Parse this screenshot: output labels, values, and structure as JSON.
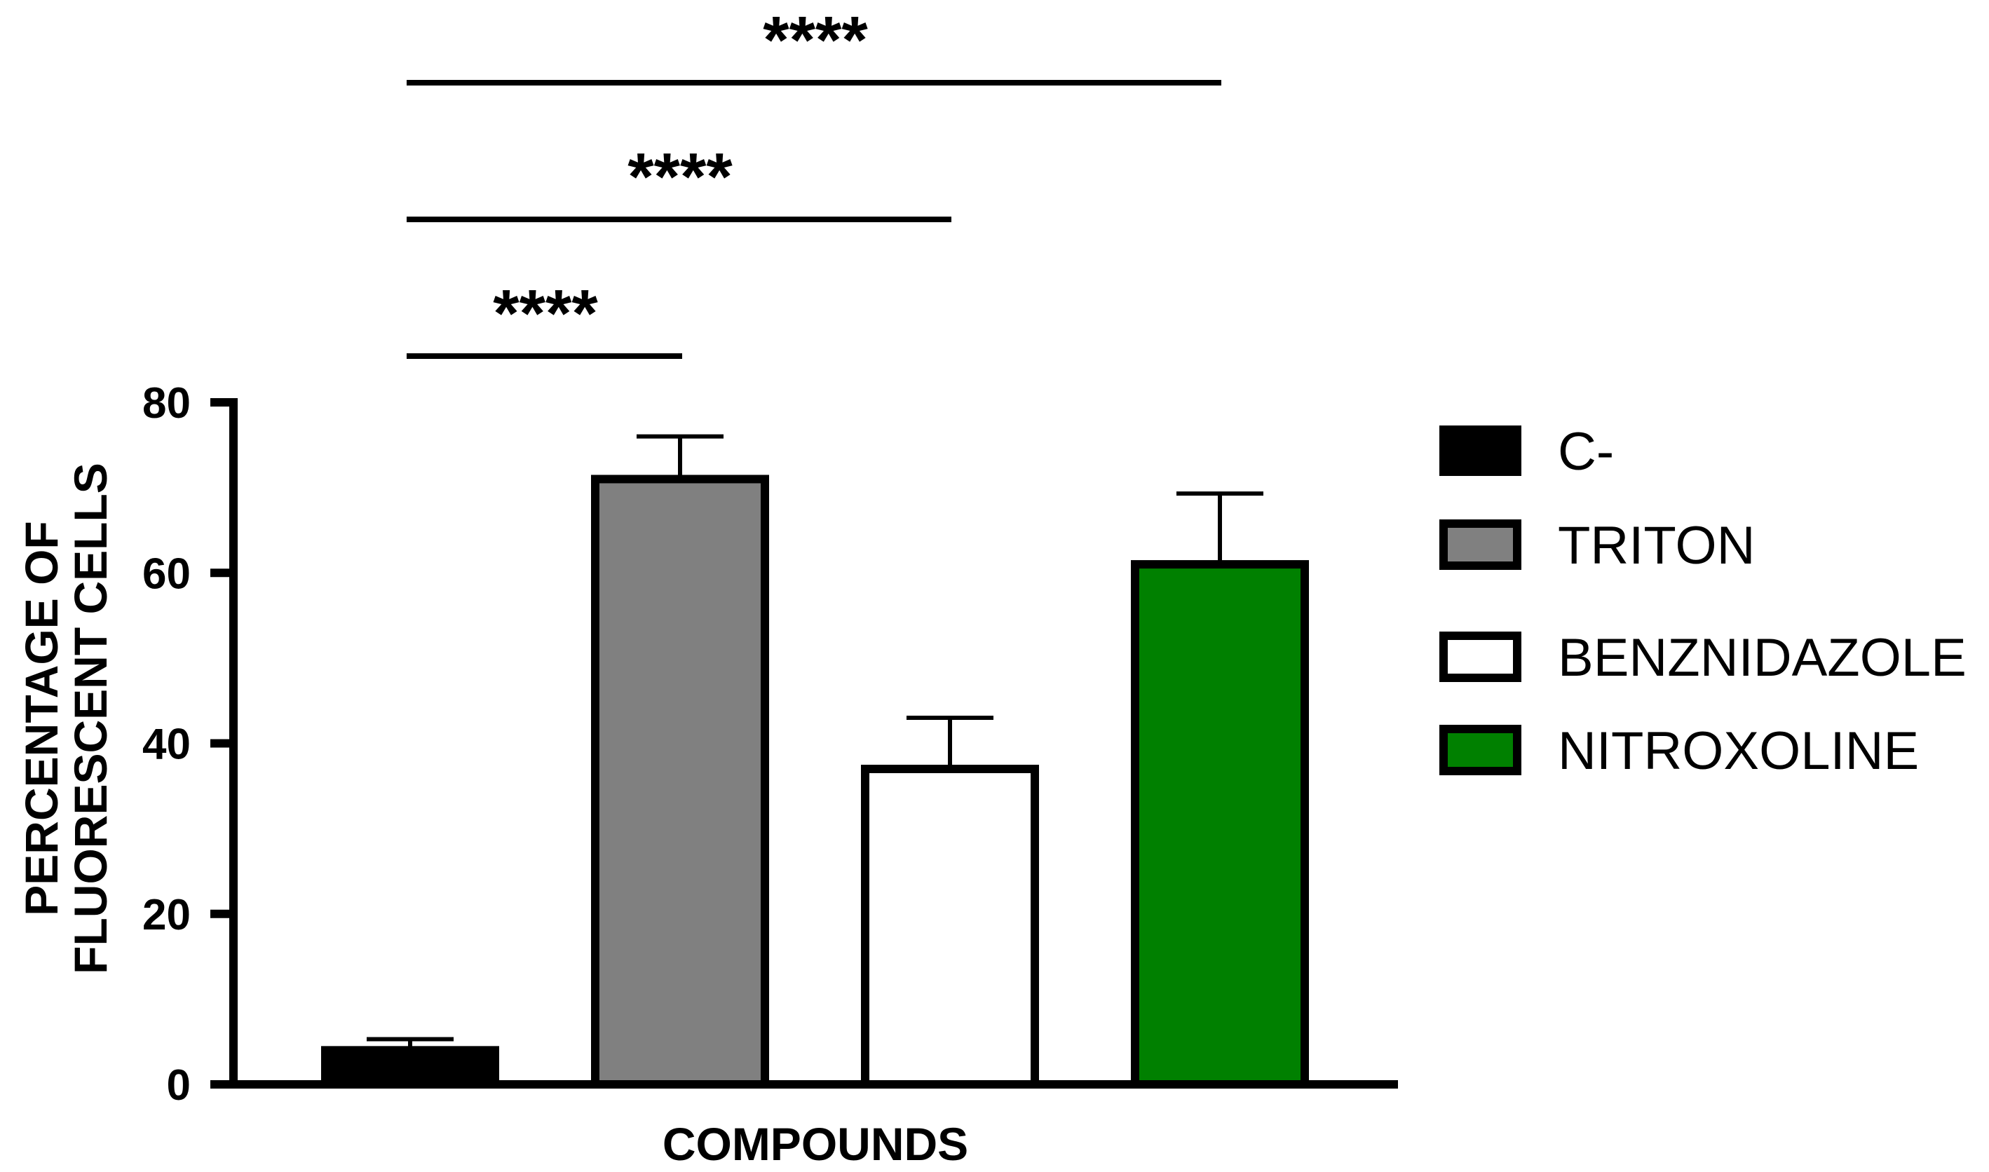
{
  "chart_data": {
    "type": "bar",
    "categories": [
      "C-",
      "TRITON",
      "BENZNIDAZOLE",
      "NITROXOLINE"
    ],
    "values": [
      4,
      71,
      37,
      61
    ],
    "errors": [
      1.3,
      5,
      6,
      8.3
    ],
    "colors": [
      "#000000",
      "#808080",
      "#ffffff",
      "#008000"
    ],
    "xlabel": "COMPOUNDS",
    "ylabel_lines": [
      "PERCENTAGE OF",
      "FLUORESCENT CELLS"
    ],
    "ylim": [
      0,
      80
    ],
    "yticks": [
      0,
      20,
      40,
      60,
      80
    ],
    "legend": {
      "position": "right",
      "entries": [
        "C-",
        "TRITON",
        "BENZNIDAZOLE",
        "NITROXOLINE"
      ]
    },
    "significance": [
      {
        "from": "C-",
        "to": "TRITON",
        "label": "****"
      },
      {
        "from": "C-",
        "to": "BENZNIDAZOLE",
        "label": "****"
      },
      {
        "from": "C-",
        "to": "NITROXOLINE",
        "label": "****"
      }
    ],
    "grid": false
  }
}
